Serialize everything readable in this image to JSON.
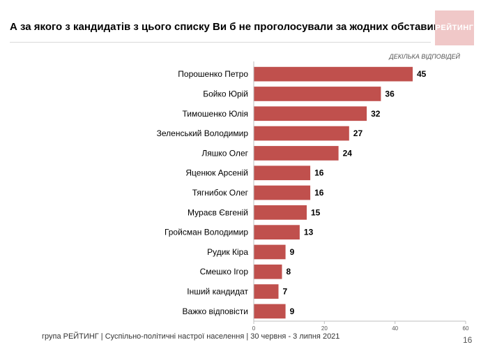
{
  "title": "А за якого з кандидатів з цього списку Ви б не проголосували за жодних обставин?",
  "logo": "РЕЙТИНГ",
  "note": "Декілька відповідей",
  "footer": "група РЕЙТИНГ | Суспільно-політичні настрої населення | 30 червня - 3 липня 2021",
  "page_number": "16",
  "colors": {
    "bar": "#c0504d",
    "axis": "#bfbfbf"
  },
  "chart_data": {
    "type": "bar",
    "orientation": "horizontal",
    "categories": [
      "Порошенко Петро",
      "Бойко Юрій",
      "Тимошенко Юлія",
      "Зеленський Володимир",
      "Ляшко Олег",
      "Яценюк  Арсеній",
      "Тягнибок Олег",
      "Мураєв Євгеній",
      "Гройсман Володимир",
      "Рудик Кіра",
      "Смешко Ігор",
      "Інший кандидат",
      "Важко відповісти"
    ],
    "values": [
      45,
      36,
      32,
      27,
      24,
      16,
      16,
      15,
      13,
      9,
      8,
      7,
      9
    ],
    "xlim": [
      0,
      60
    ],
    "xticks": [
      0,
      20,
      40,
      60
    ],
    "grid": false
  }
}
